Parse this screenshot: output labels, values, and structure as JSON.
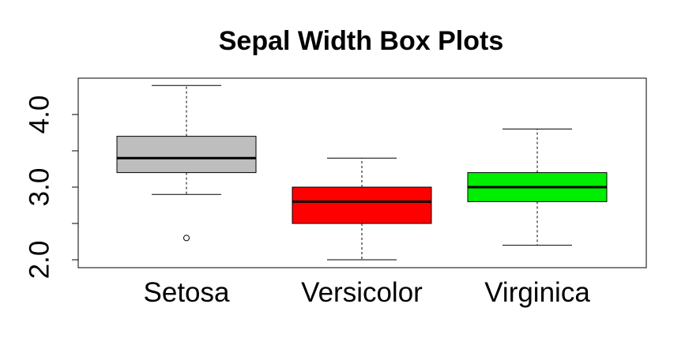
{
  "chart_data": {
    "type": "box",
    "title": "Sepal Width Box Plots",
    "xlabel": "",
    "ylabel": "",
    "ylim": [
      1.95,
      4.45
    ],
    "y_ticks": [
      2.0,
      2.5,
      3.0,
      3.5,
      4.0
    ],
    "y_tick_labels": [
      "2.0",
      "",
      "3.0",
      "",
      "4.0"
    ],
    "grid": false,
    "categories": [
      "Setosa",
      "Versicolor",
      "Virginica"
    ],
    "series": [
      {
        "name": "Setosa",
        "color": "#bebebe",
        "whisker_low": 2.9,
        "q1": 3.2,
        "median": 3.4,
        "q3": 3.7,
        "whisker_high": 4.4,
        "outliers": [
          2.3
        ]
      },
      {
        "name": "Versicolor",
        "color": "#ff0000",
        "whisker_low": 2.0,
        "q1": 2.5,
        "median": 2.8,
        "q3": 3.0,
        "whisker_high": 3.4,
        "outliers": []
      },
      {
        "name": "Virginica",
        "color": "#00ee00",
        "whisker_low": 2.2,
        "q1": 2.8,
        "median": 3.0,
        "q3": 3.2,
        "whisker_high": 3.8,
        "outliers": []
      }
    ]
  }
}
